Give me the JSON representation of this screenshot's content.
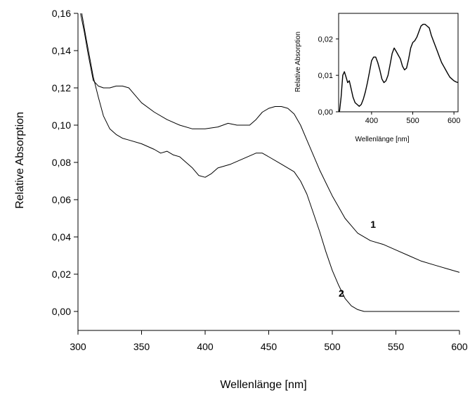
{
  "chart_data": [
    {
      "type": "line",
      "title": "",
      "xlabel": "Wellenlänge [nm]",
      "ylabel": "Relative Absorption",
      "xlim": [
        300,
        600
      ],
      "ylim": [
        0.0,
        0.16
      ],
      "x_ticks": [
        300,
        350,
        400,
        450,
        500,
        550,
        600
      ],
      "y_ticks": [
        0.0,
        0.02,
        0.04,
        0.06,
        0.08,
        0.1,
        0.12,
        0.14,
        0.16
      ],
      "x_tick_labels": [
        "300",
        "350",
        "400",
        "450",
        "500",
        "550",
        "600"
      ],
      "y_tick_labels": [
        "0,00",
        "0,02",
        "0,04",
        "0,06",
        "0,08",
        "0,10",
        "0,12",
        "0,14",
        "0,16"
      ],
      "grid": false,
      "series": [
        {
          "label": "1",
          "x": [
            302,
            305,
            308,
            312,
            316,
            320,
            325,
            330,
            335,
            340,
            345,
            350,
            360,
            370,
            380,
            390,
            400,
            410,
            418,
            425,
            430,
            435,
            440,
            445,
            450,
            455,
            460,
            465,
            470,
            475,
            480,
            485,
            490,
            495,
            500,
            505,
            510,
            515,
            520,
            530,
            540,
            550,
            560,
            570,
            580,
            590,
            600
          ],
          "y": [
            0.16,
            0.15,
            0.138,
            0.124,
            0.121,
            0.12,
            0.12,
            0.121,
            0.121,
            0.12,
            0.116,
            0.112,
            0.107,
            0.103,
            0.1,
            0.098,
            0.098,
            0.099,
            0.101,
            0.1,
            0.1,
            0.1,
            0.103,
            0.107,
            0.109,
            0.11,
            0.11,
            0.109,
            0.106,
            0.1,
            0.092,
            0.084,
            0.076,
            0.069,
            0.062,
            0.056,
            0.05,
            0.046,
            0.042,
            0.038,
            0.036,
            0.033,
            0.03,
            0.027,
            0.025,
            0.023,
            0.021
          ]
        },
        {
          "label": "2",
          "x": [
            303,
            306,
            309,
            312,
            316,
            320,
            325,
            330,
            335,
            340,
            350,
            360,
            365,
            370,
            375,
            380,
            385,
            390,
            395,
            400,
            405,
            410,
            420,
            430,
            440,
            445,
            450,
            460,
            470,
            475,
            480,
            485,
            490,
            495,
            500,
            505,
            510,
            515,
            520,
            525,
            530,
            540,
            550,
            560,
            570,
            580,
            590,
            600
          ],
          "y": [
            0.16,
            0.148,
            0.137,
            0.126,
            0.115,
            0.105,
            0.098,
            0.095,
            0.093,
            0.092,
            0.09,
            0.087,
            0.085,
            0.086,
            0.084,
            0.083,
            0.08,
            0.077,
            0.073,
            0.072,
            0.074,
            0.077,
            0.079,
            0.082,
            0.085,
            0.085,
            0.083,
            0.079,
            0.075,
            0.07,
            0.063,
            0.053,
            0.043,
            0.032,
            0.022,
            0.014,
            0.007,
            0.003,
            0.001,
            0.0,
            0.0,
            0.0,
            0.0,
            0.0,
            0.0,
            0.0,
            0.0,
            0.0
          ]
        }
      ]
    },
    {
      "type": "line",
      "title": "",
      "xlabel": "Wellenlänge [nm]",
      "ylabel": "Relative Absorption",
      "xlim": [
        320,
        610
      ],
      "ylim": [
        0.0,
        0.027
      ],
      "x_ticks": [
        400,
        500,
        600
      ],
      "y_ticks": [
        0.0,
        0.01,
        0.02
      ],
      "x_tick_labels": [
        "400",
        "500",
        "600"
      ],
      "y_tick_labels": [
        "0,00",
        "0,01",
        "0,02"
      ],
      "grid": false,
      "series": [
        {
          "x": [
            322,
            326,
            330,
            334,
            338,
            342,
            346,
            350,
            355,
            360,
            365,
            370,
            375,
            380,
            385,
            390,
            395,
            400,
            405,
            410,
            415,
            420,
            425,
            430,
            435,
            440,
            445,
            450,
            455,
            460,
            465,
            470,
            475,
            480,
            485,
            490,
            495,
            500,
            505,
            510,
            515,
            520,
            525,
            530,
            535,
            540,
            545,
            550,
            555,
            560,
            565,
            570,
            575,
            580,
            585,
            590,
            595,
            600,
            605,
            610
          ],
          "y": [
            0.0,
            0.004,
            0.01,
            0.011,
            0.0095,
            0.008,
            0.0085,
            0.0065,
            0.004,
            0.0025,
            0.002,
            0.0015,
            0.002,
            0.0035,
            0.0055,
            0.008,
            0.011,
            0.014,
            0.015,
            0.015,
            0.0135,
            0.0115,
            0.009,
            0.008,
            0.0085,
            0.01,
            0.013,
            0.016,
            0.0175,
            0.0165,
            0.0155,
            0.0145,
            0.0125,
            0.0115,
            0.012,
            0.0145,
            0.0175,
            0.019,
            0.0195,
            0.0205,
            0.022,
            0.0235,
            0.024,
            0.024,
            0.0235,
            0.023,
            0.021,
            0.0195,
            0.018,
            0.0165,
            0.015,
            0.0135,
            0.0125,
            0.0115,
            0.0105,
            0.0095,
            0.009,
            0.0085,
            0.0082,
            0.008
          ]
        }
      ]
    }
  ]
}
